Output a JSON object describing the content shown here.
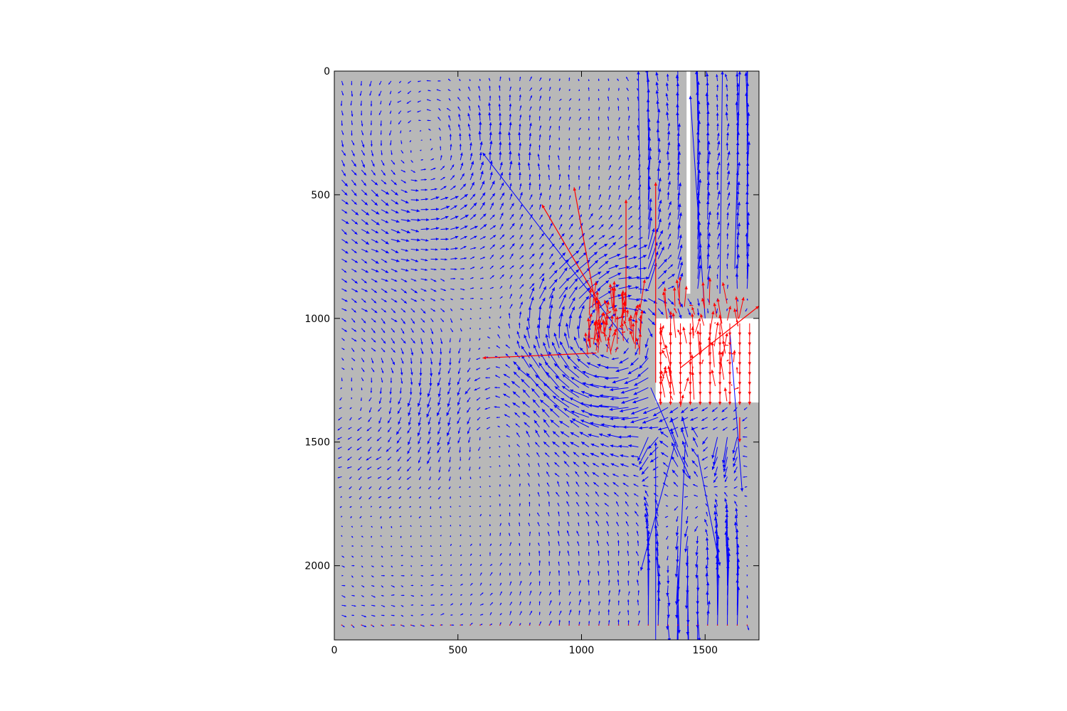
{
  "chart_data": {
    "type": "quiver",
    "title": "",
    "xlabel": "",
    "ylabel": "",
    "xlim": [
      0,
      1718
    ],
    "ylim": [
      2300,
      0
    ],
    "y_inverted": true,
    "grid": false,
    "legend": "none",
    "x_ticks": [
      "0",
      "500",
      "1000",
      "1500"
    ],
    "y_ticks": [
      "0",
      "500",
      "1000",
      "1500",
      "2000"
    ],
    "x_tick_values": [
      0,
      500,
      1000,
      1500
    ],
    "y_tick_values": [
      0,
      500,
      1000,
      1500,
      2000
    ],
    "grid_spacing": 40,
    "colors": {
      "background": "#b8b8b8",
      "vectors_valid": "#0000ff",
      "vectors_outlier": "#ff0000",
      "masked_region": "#ffffff"
    },
    "masked_regions": [
      {
        "x": [
          1300,
          1718
        ],
        "y": [
          1000,
          1340
        ]
      },
      {
        "x": [
          1425,
          1440
        ],
        "y": [
          0,
          900
        ]
      }
    ],
    "series": [
      {
        "kind": "valid",
        "color": "#0000ff",
        "notes": "dense field of blue displacement vectors; swirling vortex centered near (1120,1120), strong vertical streaks near x 1240-1650"
      },
      {
        "kind": "outlier",
        "color": "#ff0000",
        "long_vectors": [
          {
            "x0": 1060,
            "y0": 1140,
            "x1": 600,
            "y1": 1160
          },
          {
            "x0": 1080,
            "y0": 950,
            "x1": 840,
            "y1": 540
          },
          {
            "x0": 1060,
            "y0": 960,
            "x1": 970,
            "y1": 470
          },
          {
            "x0": 1180,
            "y0": 950,
            "x1": 1180,
            "y1": 520
          },
          {
            "x0": 1400,
            "y0": 1200,
            "x1": 1718,
            "y1": 950
          },
          {
            "x0": 1300,
            "y0": 1260,
            "x1": 1300,
            "y1": 450
          },
          {
            "x0": 1640,
            "y0": 1400,
            "x1": 1640,
            "y1": 1500
          }
        ],
        "cluster_centers": [
          {
            "x": 1130,
            "y": 1050
          },
          {
            "x": 1480,
            "y": 1150
          }
        ]
      }
    ]
  }
}
